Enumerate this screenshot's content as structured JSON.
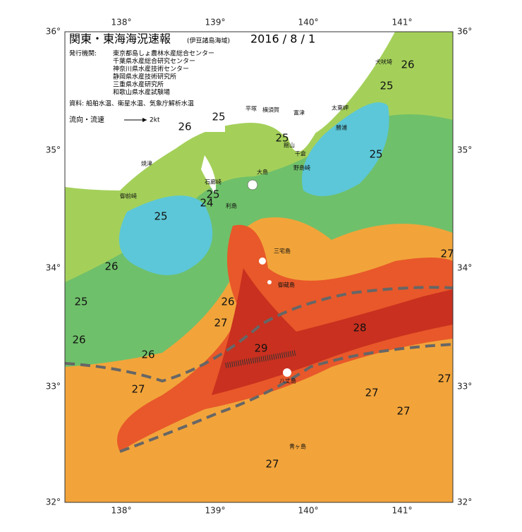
{
  "header": {
    "title": "関東・東海海況速報",
    "subtitle": "(伊豆諸島海域)",
    "date": "2016 / 8 / 1"
  },
  "issuers": {
    "label": "発行機関:",
    "items": [
      "東京都島しょ農林水産総合センター",
      "千葉県水産総合研究センター",
      "神奈川県水産技術センター",
      "静岡県水産技術研究所",
      "三重県水産研究所",
      "和歌山県水産試験場"
    ]
  },
  "sources": "資料: 船舶水温、衛星水温、気象庁解析水温",
  "current_legend": {
    "label": "流向・流速",
    "speed": "2kt"
  },
  "axes": {
    "top_lon": [
      "138°",
      "139°",
      "140°",
      "141°"
    ],
    "bottom_lon": [
      "138°",
      "139°",
      "140°",
      "141°"
    ],
    "left_lat": [
      "36°",
      "35°",
      "34°",
      "33°",
      "32°"
    ],
    "right_lat": [
      "36°",
      "35°",
      "34°",
      "33°",
      "32°"
    ]
  },
  "isotherm_labels": [
    26,
    25,
    25,
    26,
    25,
    25,
    25,
    24,
    25,
    26,
    25,
    26,
    27,
    28,
    26,
    26,
    29,
    27,
    27,
    27,
    27,
    27,
    27
  ],
  "place_names": [
    "犬吠埼",
    "太東岬",
    "勝浦",
    "平塚",
    "横須賀",
    "富津",
    "館山",
    "千倉",
    "野島崎",
    "大島",
    "利島",
    "三宅島",
    "御蔵島",
    "八丈島",
    "青ヶ島",
    "焼津",
    "御前崎",
    "石廊崎"
  ]
}
